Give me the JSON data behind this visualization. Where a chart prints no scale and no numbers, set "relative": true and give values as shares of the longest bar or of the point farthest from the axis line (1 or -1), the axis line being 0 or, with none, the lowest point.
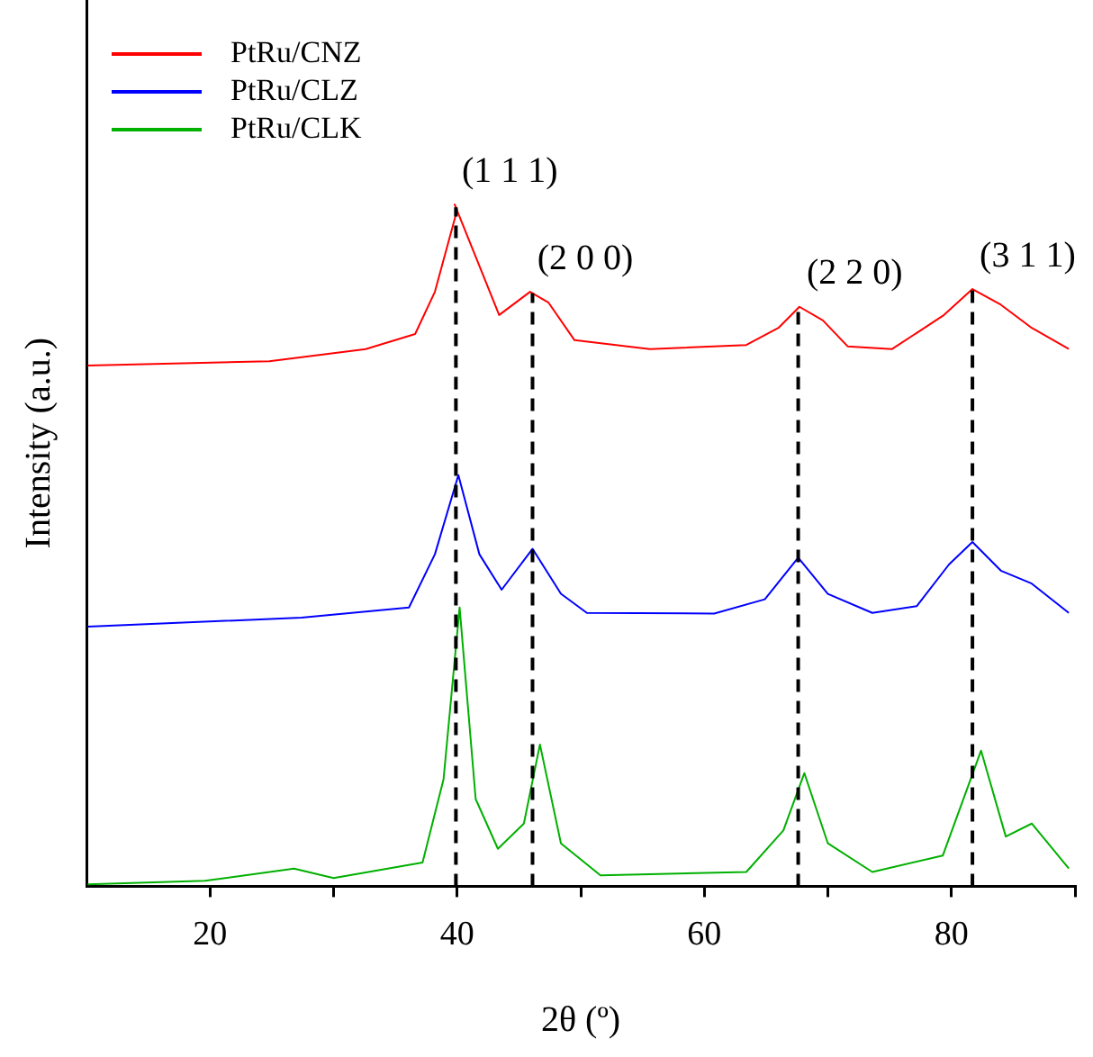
{
  "chart_data": {
    "type": "line",
    "xlabel": "2θ (º)",
    "ylabel": "Intensity (a.u.)",
    "relative": true,
    "xlim": [
      10,
      90
    ],
    "xticks": [
      20,
      {
        "value": 30,
        "label": null
      },
      40,
      {
        "value": 50,
        "label": null
      },
      60,
      {
        "value": 70,
        "label": null
      },
      80,
      {
        "value": 90,
        "label": null
      }
    ],
    "legend": "top left",
    "grid": false,
    "marker": "none",
    "line_style": "solid",
    "series": [
      {
        "name": "PtRu/CNZ",
        "color": "#ff0000",
        "x": [
          10.1,
          24.8,
          32.6,
          36.6,
          38.2,
          40.0,
          39.8,
          41.2,
          43.4,
          45.9,
          47.4,
          49.5,
          55.6,
          63.4,
          66.0,
          67.7,
          69.6,
          71.6,
          75.2,
          79.4,
          81.7,
          84.0,
          86.5,
          89.5
        ],
        "values": [
          0.764,
          0.77,
          0.788,
          0.81,
          0.872,
          0.992,
          1.0,
          0.937,
          0.838,
          0.872,
          0.856,
          0.801,
          0.788,
          0.794,
          0.819,
          0.85,
          0.83,
          0.792,
          0.788,
          0.838,
          0.876,
          0.853,
          0.819,
          0.788
        ]
      },
      {
        "name": "PtRu/CLZ",
        "color": "#0000ff",
        "x": [
          10.1,
          27.4,
          36.1,
          38.2,
          40.1,
          41.8,
          43.6,
          46.1,
          48.4,
          50.5,
          60.8,
          64.9,
          67.6,
          70.0,
          73.6,
          77.2,
          79.8,
          81.7,
          84.0,
          86.5,
          89.5
        ],
        "values": [
          0.381,
          0.394,
          0.409,
          0.487,
          0.603,
          0.487,
          0.435,
          0.495,
          0.429,
          0.401,
          0.4,
          0.421,
          0.482,
          0.429,
          0.401,
          0.411,
          0.472,
          0.505,
          0.463,
          0.444,
          0.401
        ]
      },
      {
        "name": "PtRu/CLK",
        "color": "#00b000",
        "x": [
          10.1,
          19.6,
          26.8,
          30.0,
          37.2,
          38.9,
          40.2,
          41.5,
          43.3,
          45.4,
          46.7,
          48.4,
          51.6,
          63.4,
          66.4,
          68.1,
          70.0,
          73.6,
          79.3,
          82.4,
          84.4,
          86.5,
          89.5
        ],
        "values": [
          0.003,
          0.008,
          0.026,
          0.012,
          0.035,
          0.157,
          0.409,
          0.128,
          0.055,
          0.092,
          0.208,
          0.063,
          0.016,
          0.021,
          0.082,
          0.166,
          0.063,
          0.021,
          0.045,
          0.199,
          0.073,
          0.092,
          0.026
        ]
      }
    ],
    "ref_lines": [
      {
        "axis": "x",
        "value": 39.9,
        "color": "#000000",
        "line_style": "dashed"
      },
      {
        "axis": "x",
        "value": 46.1,
        "color": "#000000",
        "line_style": "dashed"
      },
      {
        "axis": "x",
        "value": 67.6,
        "color": "#000000",
        "line_style": "dashed"
      },
      {
        "axis": "x",
        "value": 81.7,
        "color": "#000000",
        "line_style": "dashed"
      }
    ],
    "annotations": [
      {
        "text": "(1 1 1)",
        "x": 39.8,
        "y": 1.0
      },
      {
        "text": "(2 0 0)",
        "x": 45.9,
        "y": 0.872
      },
      {
        "text": "(2 2 0)",
        "x": 67.7,
        "y": 0.85
      },
      {
        "text": "(3 1 1)",
        "x": 81.7,
        "y": 0.876
      }
    ]
  }
}
